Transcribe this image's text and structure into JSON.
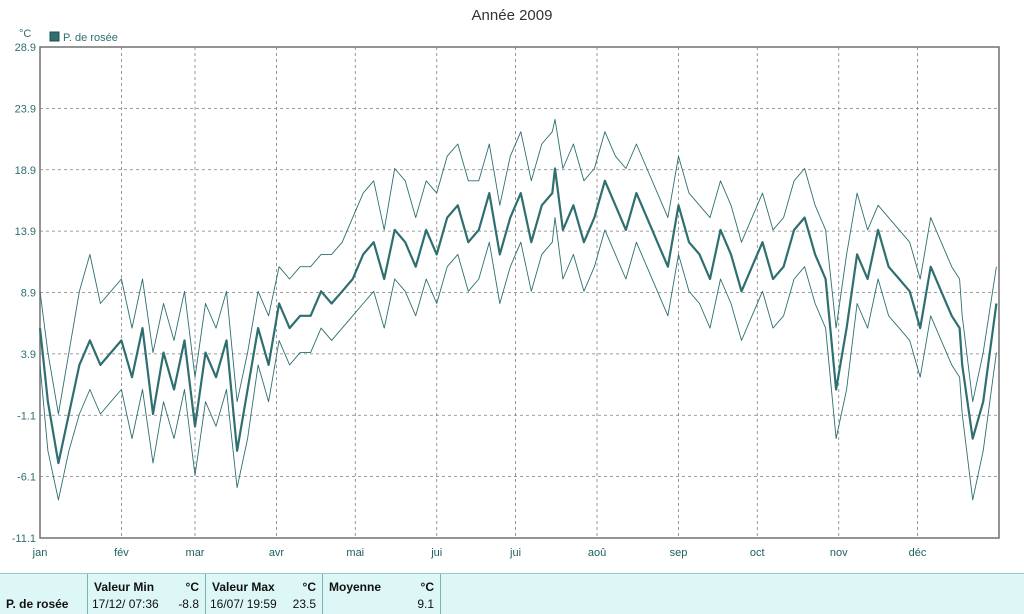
{
  "colors": {
    "series": "#2f6f70",
    "grid": "#7f7f7f",
    "frame": "#707070",
    "stats_bg": "#ddf6f6"
  },
  "stats": {
    "series_name": "P. de rosée",
    "min": {
      "label": "Valeur Min",
      "unit": "°C",
      "date": "17/12/ 07:36",
      "value": "-8.8"
    },
    "max": {
      "label": "Valeur Max",
      "unit": "°C",
      "date": "16/07/ 19:59",
      "value": "23.5"
    },
    "avg": {
      "label": "Moyenne",
      "unit": "°C",
      "value": "9.1"
    }
  },
  "chart_data": {
    "type": "line",
    "title": "Année 2009",
    "unit_label": "°C",
    "legend": {
      "entries": [
        "P. de rosée"
      ],
      "placement": "top-left"
    },
    "grid": true,
    "ylim": [
      -11.1,
      28.9
    ],
    "y_ticks": [
      "28.9",
      "23.9",
      "18.9",
      "13.9",
      "8.9",
      "3.9",
      "-1.1",
      "-6.1",
      "-11.1"
    ],
    "x_tick_labels": [
      "jan",
      "fév",
      "mar",
      "avr",
      "mai",
      "jui",
      "jui",
      "aoû",
      "sep",
      "oct",
      "nov",
      "déc"
    ],
    "x_month_lengths": [
      31,
      28,
      31,
      30,
      31,
      30,
      31,
      31,
      30,
      31,
      30,
      31
    ],
    "series": [
      {
        "name": "P. de rosée",
        "role": "mean",
        "x_unit": "day_of_year",
        "x": [
          1,
          4,
          8,
          12,
          16,
          20,
          24,
          28,
          32,
          36,
          40,
          44,
          48,
          52,
          56,
          60,
          64,
          68,
          72,
          76,
          80,
          84,
          88,
          92,
          96,
          100,
          104,
          108,
          112,
          116,
          120,
          124,
          128,
          132,
          136,
          140,
          144,
          148,
          152,
          156,
          160,
          164,
          168,
          172,
          176,
          180,
          184,
          188,
          192,
          196,
          197,
          200,
          204,
          208,
          212,
          216,
          220,
          224,
          228,
          232,
          236,
          240,
          244,
          248,
          252,
          256,
          260,
          264,
          268,
          272,
          276,
          280,
          284,
          288,
          292,
          296,
          300,
          304,
          308,
          312,
          316,
          320,
          324,
          328,
          332,
          336,
          340,
          344,
          348,
          351,
          352,
          356,
          360,
          365
        ],
        "values": [
          6,
          0,
          -5,
          -1,
          3,
          5,
          3,
          4,
          5,
          2,
          6,
          -1,
          4,
          1,
          5,
          -2,
          4,
          2,
          5,
          -4,
          1,
          6,
          3,
          8,
          6,
          7,
          7,
          9,
          8,
          9,
          10,
          12,
          13,
          10,
          14,
          13,
          11,
          14,
          12,
          15,
          16,
          13,
          14,
          17,
          12,
          15,
          17,
          13,
          16,
          17,
          19,
          14,
          16,
          13,
          15,
          18,
          16,
          14,
          17,
          15,
          13,
          11,
          16,
          13,
          12,
          10,
          14,
          12,
          9,
          11,
          13,
          10,
          11,
          14,
          15,
          12,
          10,
          1,
          6,
          12,
          10,
          14,
          11,
          10,
          9,
          6,
          11,
          9,
          7,
          6,
          3,
          -3,
          0,
          8
        ]
      },
      {
        "name": "P. de rosée",
        "role": "max",
        "x_unit": "day_of_year",
        "x": [
          1,
          4,
          8,
          12,
          16,
          20,
          24,
          28,
          32,
          36,
          40,
          44,
          48,
          52,
          56,
          60,
          64,
          68,
          72,
          76,
          80,
          84,
          88,
          92,
          96,
          100,
          104,
          108,
          112,
          116,
          120,
          124,
          128,
          132,
          136,
          140,
          144,
          148,
          152,
          156,
          160,
          164,
          168,
          172,
          176,
          180,
          184,
          188,
          192,
          196,
          197,
          200,
          204,
          208,
          212,
          216,
          220,
          224,
          228,
          232,
          236,
          240,
          244,
          248,
          252,
          256,
          260,
          264,
          268,
          272,
          276,
          280,
          284,
          288,
          292,
          296,
          300,
          304,
          308,
          312,
          316,
          320,
          324,
          328,
          332,
          336,
          340,
          344,
          348,
          351,
          352,
          356,
          360,
          365
        ],
        "values": [
          9,
          4,
          -1,
          4,
          9,
          12,
          8,
          9,
          10,
          6,
          10,
          4,
          8,
          5,
          9,
          2,
          8,
          6,
          9,
          0,
          4,
          9,
          7,
          11,
          10,
          11,
          11,
          12,
          12,
          13,
          15,
          17,
          18,
          14,
          19,
          18,
          15,
          18,
          17,
          20,
          21,
          18,
          18,
          21,
          16,
          20,
          22,
          18,
          21,
          22,
          23,
          19,
          21,
          18,
          19,
          22,
          20,
          19,
          21,
          19,
          17,
          15,
          20,
          17,
          16,
          15,
          18,
          16,
          13,
          15,
          17,
          14,
          15,
          18,
          19,
          16,
          14,
          6,
          12,
          17,
          14,
          16,
          15,
          14,
          13,
          10,
          15,
          13,
          11,
          10,
          7,
          0,
          4,
          11
        ]
      },
      {
        "name": "P. de rosée",
        "role": "min",
        "x_unit": "day_of_year",
        "x": [
          1,
          4,
          8,
          12,
          16,
          20,
          24,
          28,
          32,
          36,
          40,
          44,
          48,
          52,
          56,
          60,
          64,
          68,
          72,
          76,
          80,
          84,
          88,
          92,
          96,
          100,
          104,
          108,
          112,
          116,
          120,
          124,
          128,
          132,
          136,
          140,
          144,
          148,
          152,
          156,
          160,
          164,
          168,
          172,
          176,
          180,
          184,
          188,
          192,
          196,
          197,
          200,
          204,
          208,
          212,
          216,
          220,
          224,
          228,
          232,
          236,
          240,
          244,
          248,
          252,
          256,
          260,
          264,
          268,
          272,
          276,
          280,
          284,
          288,
          292,
          296,
          300,
          304,
          308,
          312,
          316,
          320,
          324,
          328,
          332,
          336,
          340,
          344,
          348,
          351,
          352,
          356,
          360,
          365
        ],
        "values": [
          3,
          -4,
          -8,
          -4,
          -1,
          1,
          -1,
          0,
          1,
          -3,
          1,
          -5,
          0,
          -3,
          1,
          -6,
          0,
          -2,
          1,
          -7,
          -3,
          3,
          0,
          5,
          3,
          4,
          4,
          6,
          5,
          6,
          7,
          8,
          9,
          6,
          10,
          9,
          7,
          10,
          8,
          11,
          12,
          9,
          10,
          13,
          8,
          11,
          13,
          9,
          12,
          13,
          15,
          10,
          12,
          9,
          11,
          14,
          12,
          10,
          13,
          11,
          9,
          7,
          12,
          9,
          8,
          6,
          10,
          8,
          5,
          7,
          9,
          6,
          7,
          10,
          11,
          8,
          6,
          -3,
          1,
          8,
          6,
          10,
          7,
          6,
          5,
          2,
          7,
          5,
          3,
          2,
          -1,
          -8,
          -4,
          4
        ]
      }
    ]
  }
}
